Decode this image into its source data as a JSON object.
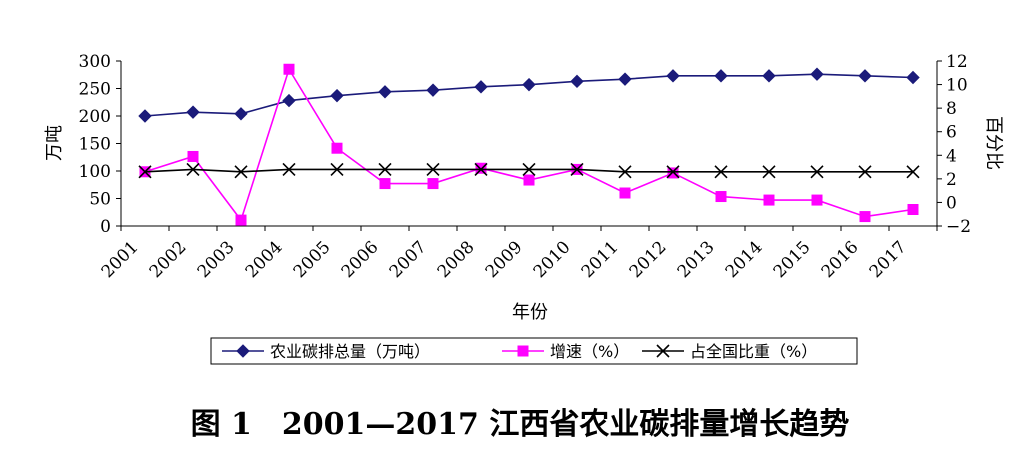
{
  "chart_data": {
    "type": "line",
    "title": "图 1　2001—2017 江西省农业碳排量增长趋势",
    "xlabel": "年份",
    "ylabel": "万吨",
    "y2label": "百分比",
    "categories": [
      "2001",
      "2002",
      "2003",
      "2004",
      "2005",
      "2006",
      "2007",
      "2008",
      "2009",
      "2010",
      "2011",
      "2012",
      "2013",
      "2014",
      "2015",
      "2016",
      "2017"
    ],
    "ylim": [
      0,
      300
    ],
    "yticks": [
      "0",
      "50",
      "100",
      "150",
      "200",
      "250",
      "300"
    ],
    "y2lim": [
      -2,
      12
    ],
    "y2ticks": [
      "−2",
      "0",
      "2",
      "4",
      "6",
      "8",
      "10",
      "12"
    ],
    "grid": false,
    "legend_position": "bottom",
    "series": [
      {
        "name": "农业碳排总量（万吨）",
        "axis": "left",
        "marker": "diamond",
        "color": "#1b1b7a",
        "values": [
          200,
          207,
          204,
          228,
          237,
          244,
          247,
          253,
          257,
          263,
          267,
          273,
          273,
          273,
          276,
          273,
          270
        ]
      },
      {
        "name": "增速（%）",
        "axis": "right",
        "marker": "square",
        "color": "#ff00ff",
        "values": [
          2.6,
          3.9,
          -1.5,
          11.3,
          4.6,
          1.6,
          1.6,
          2.9,
          1.9,
          2.8,
          0.8,
          2.5,
          0.5,
          0.2,
          0.2,
          -1.2,
          -0.6
        ]
      },
      {
        "name": "占全国比重（%）",
        "axis": "right",
        "marker": "x",
        "color": "#000000",
        "values": [
          2.6,
          2.8,
          2.6,
          2.8,
          2.8,
          2.8,
          2.8,
          2.8,
          2.8,
          2.8,
          2.6,
          2.6,
          2.6,
          2.6,
          2.6,
          2.6,
          2.6
        ]
      }
    ]
  }
}
